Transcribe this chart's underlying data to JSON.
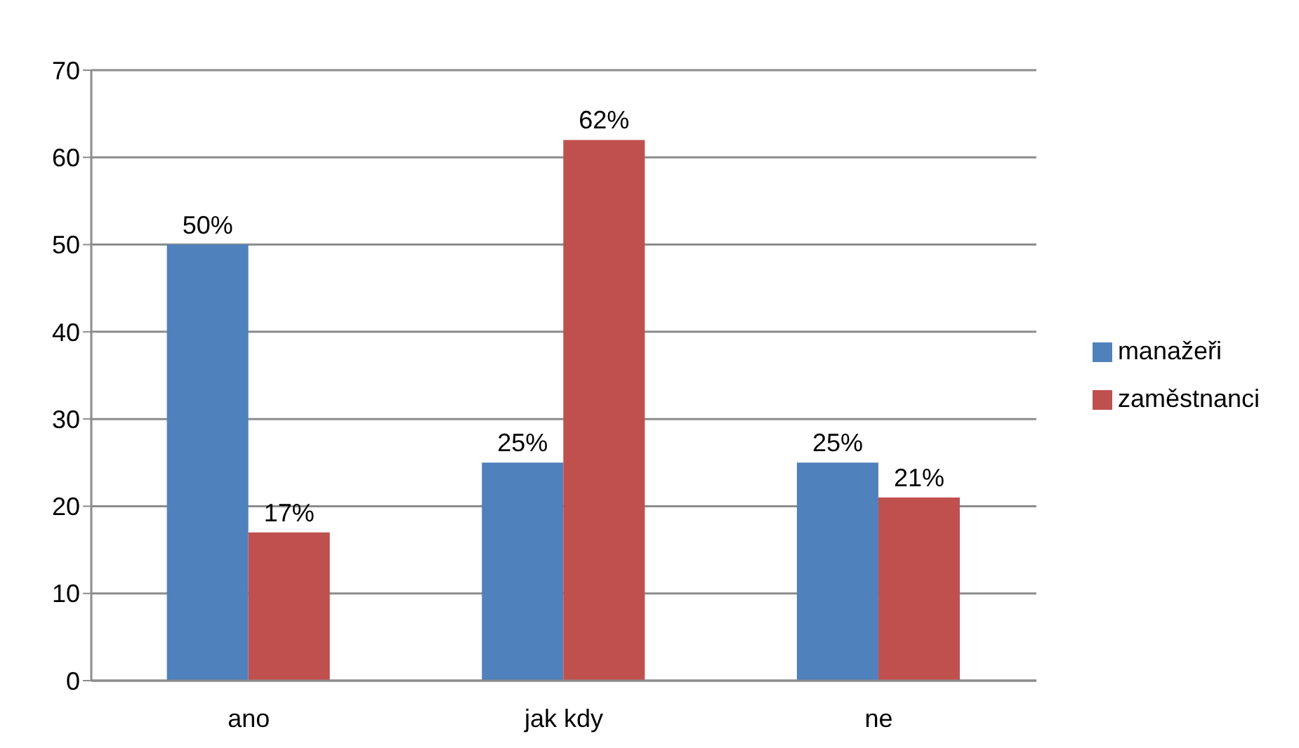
{
  "chart_data": {
    "type": "bar",
    "categories": [
      "ano",
      "jak kdy",
      "ne"
    ],
    "series": [
      {
        "name": "manažeři",
        "color": "#4f81bd",
        "values": [
          50,
          25,
          25
        ],
        "value_labels": [
          "50%",
          "25%",
          "25%"
        ]
      },
      {
        "name": "zaměstnanci",
        "color": "#c0504d",
        "values": [
          17,
          62,
          21
        ],
        "value_labels": [
          "17%",
          "62%",
          "21%"
        ]
      }
    ],
    "ylim": [
      0,
      70
    ],
    "yticks": [
      0,
      10,
      20,
      30,
      40,
      50,
      60,
      70
    ],
    "grid": "y",
    "legend": "right"
  }
}
